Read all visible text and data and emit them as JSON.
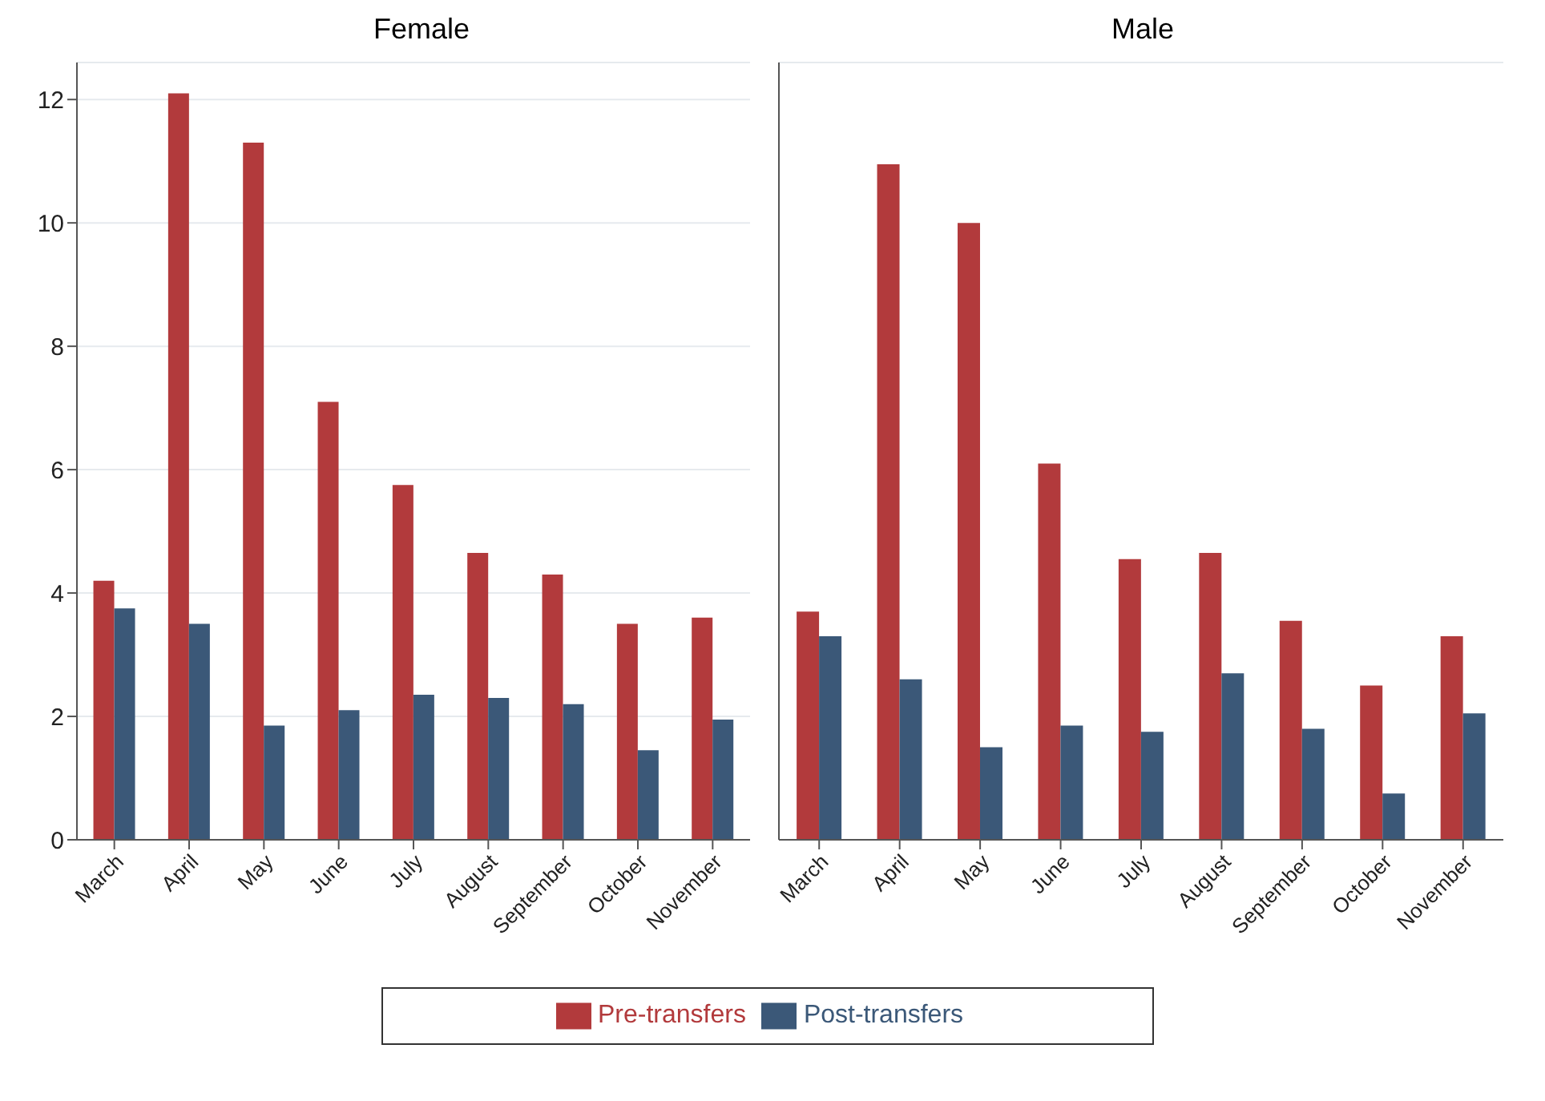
{
  "chart_data": [
    {
      "type": "bar",
      "title": "Female",
      "categories": [
        "March",
        "April",
        "May",
        "June",
        "July",
        "August",
        "September",
        "October",
        "November"
      ],
      "series": [
        {
          "name": "Pre-transfers",
          "color": "#b23a3c",
          "values": [
            4.2,
            12.1,
            11.3,
            7.1,
            5.75,
            4.65,
            4.3,
            3.5,
            3.6
          ]
        },
        {
          "name": "Post-transfers",
          "color": "#3b5878",
          "values": [
            3.75,
            3.5,
            1.85,
            2.1,
            2.35,
            2.3,
            2.2,
            1.45,
            1.95
          ]
        }
      ],
      "ylim": [
        0,
        12.6
      ],
      "yticks": [
        0,
        2,
        4,
        6,
        8,
        10,
        12
      ],
      "grid": "y",
      "legend": "bottom"
    },
    {
      "type": "bar",
      "title": "Male",
      "categories": [
        "March",
        "April",
        "May",
        "June",
        "July",
        "August",
        "September",
        "October",
        "November"
      ],
      "series": [
        {
          "color": "#b23a3c",
          "values": [
            3.7,
            10.95,
            10,
            6.1,
            4.55,
            4.65,
            3.55,
            2.5,
            3.3
          ]
        },
        {
          "color": "#3b5878",
          "values": [
            3.3,
            2.6,
            1.5,
            1.85,
            1.75,
            2.7,
            1.8,
            0.75,
            2.05
          ]
        }
      ],
      "ylim": [
        0,
        12.6
      ],
      "yticks": [
        0,
        2,
        4,
        6,
        8,
        10,
        12
      ],
      "grid": "y",
      "tick_labels": "x"
    }
  ]
}
